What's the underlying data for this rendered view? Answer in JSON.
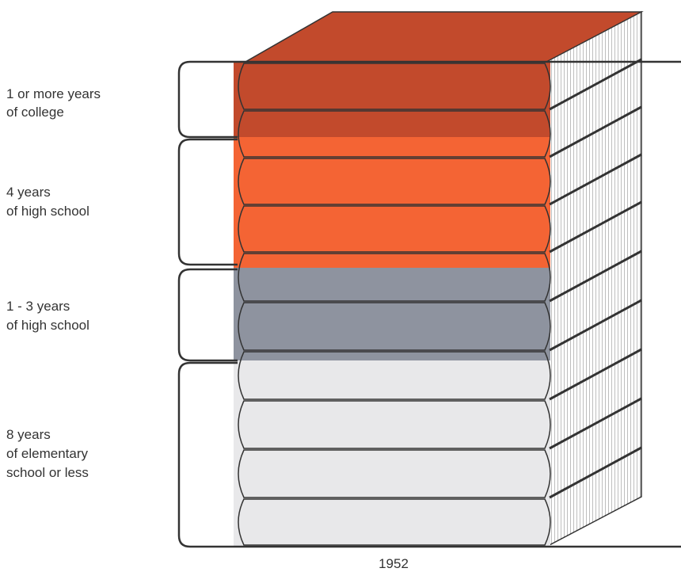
{
  "groups": [
    {
      "label": [
        "1 or more years",
        "of college"
      ]
    },
    {
      "label": [
        "4 years",
        "of high school"
      ]
    },
    {
      "label": [
        "1 - 3 years",
        "of high school"
      ]
    },
    {
      "label": [
        "8 years",
        "of elementary",
        "school or less"
      ]
    }
  ],
  "year": "1952"
}
